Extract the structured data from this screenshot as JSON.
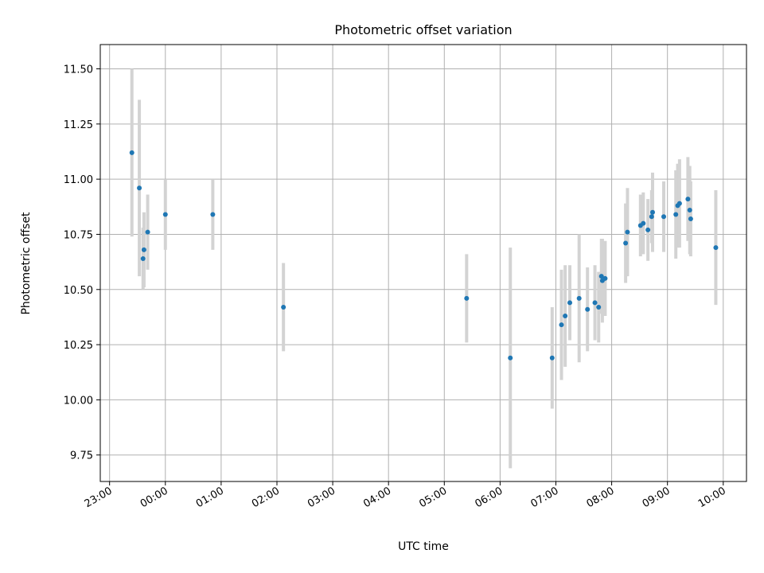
{
  "chart_data": {
    "type": "scatter",
    "title": "Photometric offset variation",
    "xlabel": "UTC time",
    "ylabel": "Photometric offset",
    "xlim": [
      "22:50",
      "10:25"
    ],
    "ylim": [
      9.63,
      11.61
    ],
    "x_ticks": [
      "23:00",
      "00:00",
      "01:00",
      "02:00",
      "03:00",
      "04:00",
      "05:00",
      "06:00",
      "07:00",
      "08:00",
      "09:00",
      "10:00"
    ],
    "y_ticks": [
      "9.75",
      "10.00",
      "10.25",
      "10.50",
      "10.75",
      "11.00",
      "11.25",
      "11.50"
    ],
    "grid": true,
    "colors": {
      "point": "#1f77b4",
      "errorbar": "#d3d3d3"
    },
    "series": [
      {
        "points": [
          {
            "time": "23:24",
            "y": 11.12,
            "err": 0.38
          },
          {
            "time": "23:32",
            "y": 10.96,
            "err": 0.4
          },
          {
            "time": "23:36",
            "y": 10.64,
            "err": 0.14
          },
          {
            "time": "23:37",
            "y": 10.68,
            "err": 0.17
          },
          {
            "time": "23:41",
            "y": 10.76,
            "err": 0.17
          },
          {
            "time": "00:00",
            "y": 10.84,
            "err": 0.16
          },
          {
            "time": "00:51",
            "y": 10.84,
            "err": 0.16
          },
          {
            "time": "02:07",
            "y": 10.42,
            "err": 0.2
          },
          {
            "time": "05:24",
            "y": 10.46,
            "err": 0.2
          },
          {
            "time": "06:11",
            "y": 10.19,
            "err": 0.5
          },
          {
            "time": "06:56",
            "y": 10.19,
            "err": 0.23
          },
          {
            "time": "07:06",
            "y": 10.34,
            "err": 0.25
          },
          {
            "time": "07:10",
            "y": 10.38,
            "err": 0.23
          },
          {
            "time": "07:15",
            "y": 10.44,
            "err": 0.17
          },
          {
            "time": "07:25",
            "y": 10.46,
            "err": 0.29
          },
          {
            "time": "07:34",
            "y": 10.41,
            "err": 0.19
          },
          {
            "time": "07:42",
            "y": 10.44,
            "err": 0.17
          },
          {
            "time": "07:46",
            "y": 10.42,
            "err": 0.16
          },
          {
            "time": "07:49",
            "y": 10.56,
            "err": 0.17
          },
          {
            "time": "07:50",
            "y": 10.54,
            "err": 0.19
          },
          {
            "time": "07:53",
            "y": 10.55,
            "err": 0.17
          },
          {
            "time": "08:15",
            "y": 10.71,
            "err": 0.18
          },
          {
            "time": "08:17",
            "y": 10.76,
            "err": 0.2
          },
          {
            "time": "08:31",
            "y": 10.79,
            "err": 0.14
          },
          {
            "time": "08:34",
            "y": 10.8,
            "err": 0.14
          },
          {
            "time": "08:39",
            "y": 10.77,
            "err": 0.14
          },
          {
            "time": "08:43",
            "y": 10.83,
            "err": 0.12
          },
          {
            "time": "08:44",
            "y": 10.85,
            "err": 0.18
          },
          {
            "time": "08:56",
            "y": 10.83,
            "err": 0.16
          },
          {
            "time": "09:09",
            "y": 10.84,
            "err": 0.2
          },
          {
            "time": "09:11",
            "y": 10.88,
            "err": 0.19
          },
          {
            "time": "09:13",
            "y": 10.89,
            "err": 0.2
          },
          {
            "time": "09:22",
            "y": 10.91,
            "err": 0.19
          },
          {
            "time": "09:24",
            "y": 10.86,
            "err": 0.2
          },
          {
            "time": "09:25",
            "y": 10.82,
            "err": 0.17
          },
          {
            "time": "09:52",
            "y": 10.69,
            "err": 0.26
          }
        ]
      }
    ]
  }
}
